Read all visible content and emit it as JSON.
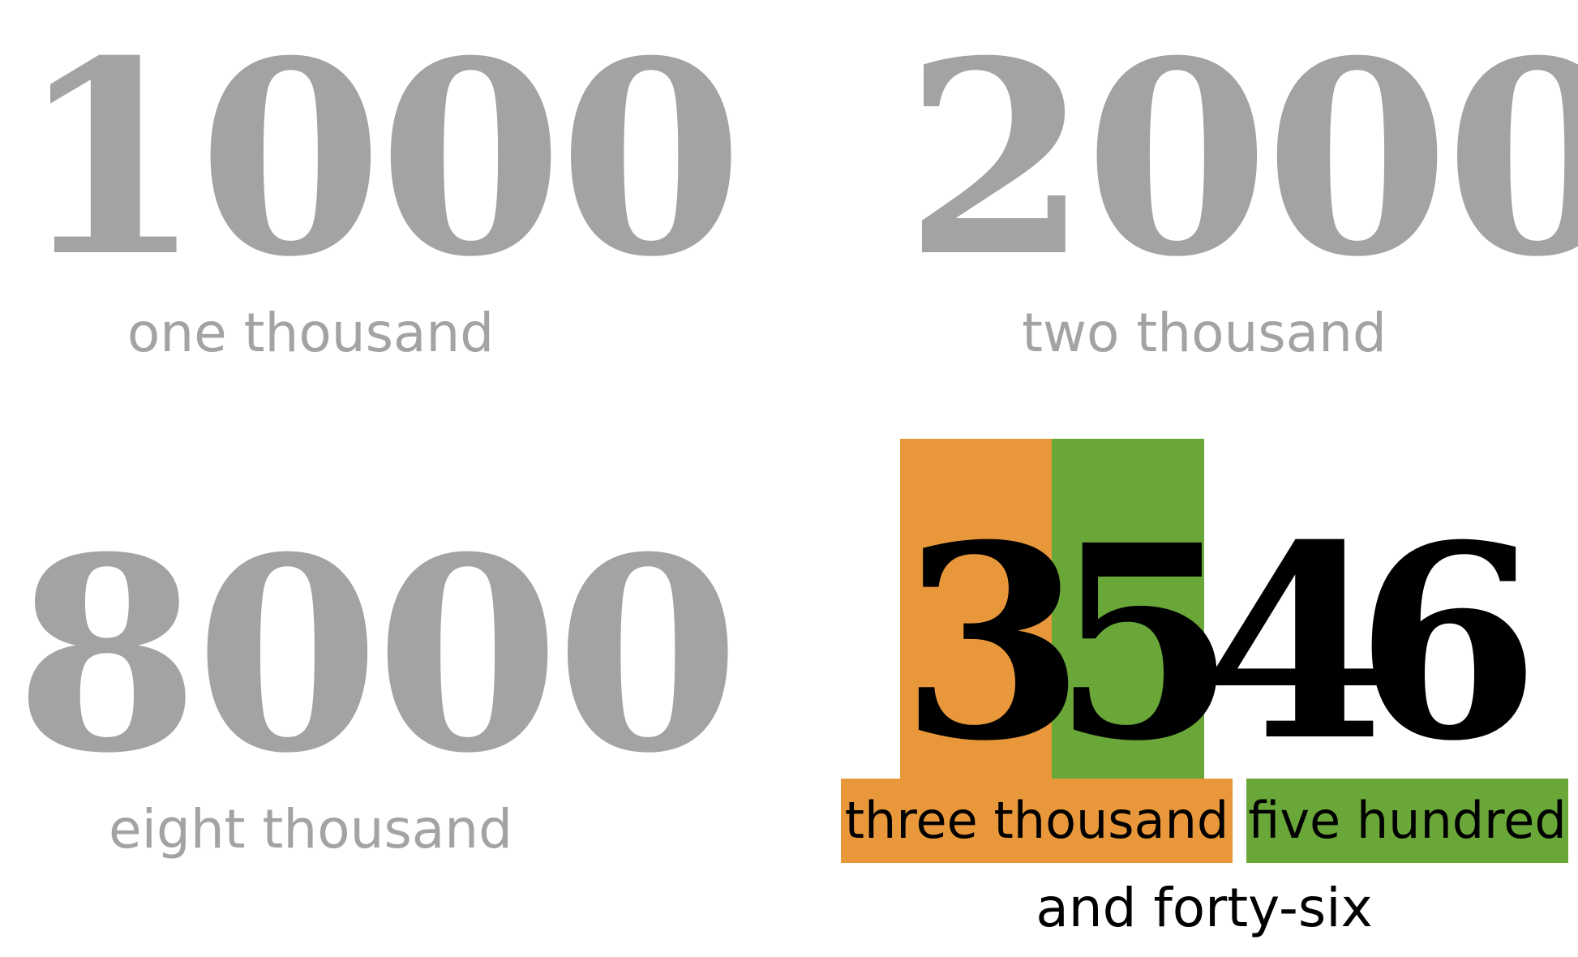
{
  "colors": {
    "muted_gray": "#a3a3a3",
    "highlight_orange": "#e8983a",
    "highlight_green": "#6aa739",
    "ink_black": "#000000"
  },
  "items": [
    {
      "numeral": "1000",
      "words": "one thousand"
    },
    {
      "numeral": "2000",
      "words": "two thousand"
    },
    {
      "numeral": "8000",
      "words": "eight thousand"
    }
  ],
  "featured": {
    "digits": [
      "3",
      "5",
      "4",
      "6"
    ],
    "thousands_words": "three thousand",
    "hundreds_words": "five hundred",
    "remainder_words": "and forty-six"
  }
}
